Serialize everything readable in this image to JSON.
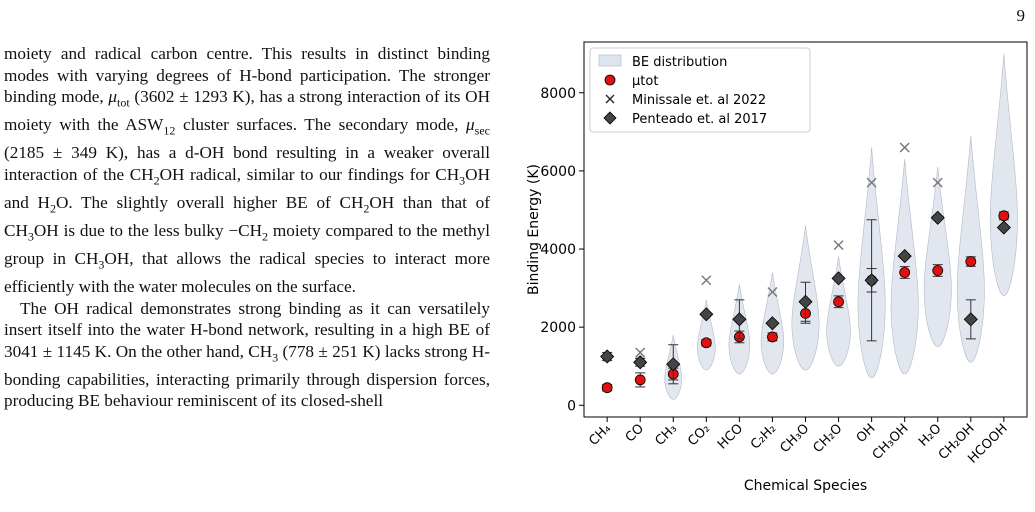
{
  "page": {
    "number": "9"
  },
  "body_text": {
    "paragraphs": [
      "moiety and radical carbon centre. This results in distinct binding modes with varying degrees of H-bond participation. The stronger binding mode, μtot (3602 ± 1293 K), has a strong interaction of its OH moiety with the ASW12 cluster surfaces. The secondary mode, μsec (2185 ± 349 K), has a d-OH bond resulting in a weaker overall interaction of the CH2OH radical, similar to our findings for CH3OH and H2O. The slightly overall higher BE of CH2OH than that of CH3OH is due to the less bulky −CH2 moiety compared to the methyl group in CH3OH, that allows the radical species to interact more efficiently with the water molecules on the surface.",
      "The OH radical demonstrates strong binding as it can versatilely insert itself into the water H-bond network, resulting in a high BE of 3041 ± 1145 K. On the other hand, CH3 (778 ± 251 K) lacks strong H-bonding capabilities, interacting primarily through dispersion forces, producing BE behaviour reminiscent of its closed-shell"
    ]
  },
  "chart_data": {
    "type": "scatter",
    "xlabel": "Chemical Species",
    "ylabel": "Binding Energy (K)",
    "ylim": [
      -300,
      9300
    ],
    "yticks": [
      0,
      2000,
      4000,
      6000,
      8000
    ],
    "categories": [
      "CH₄",
      "CO",
      "CH₃",
      "CO₂",
      "HCO",
      "C₂H₂",
      "CH₃O",
      "CH₂O",
      "OH",
      "CH₃OH",
      "H₂O",
      "CH₂OH",
      "HCOOH"
    ],
    "legend_position": "upper-left",
    "legend": [
      "BE distribution",
      "μtot",
      "Minissale  et. al 2022",
      "Penteado et. al 2017"
    ],
    "colors": {
      "violin_fill": "#dfe5ee",
      "violin_edge": "#aab3c2",
      "mu_tot": "#e01010",
      "penteado": "#444444",
      "minissale": "#777777",
      "error": "#333333"
    },
    "series": [
      {
        "name": "BE distribution",
        "kind": "violin",
        "ranges": [
          [
            1100,
            1350
          ],
          [
            1000,
            1400
          ],
          [
            150,
            1800
          ],
          [
            900,
            2700
          ],
          [
            800,
            3100
          ],
          [
            800,
            3400
          ],
          [
            900,
            4600
          ],
          [
            1000,
            3800
          ],
          [
            700,
            6600
          ],
          [
            800,
            6300
          ],
          [
            1500,
            6100
          ],
          [
            1100,
            6900
          ],
          [
            2800,
            9000
          ]
        ]
      },
      {
        "name": "μtot",
        "kind": "points_with_error",
        "values": [
          450,
          650,
          800,
          1600,
          1750,
          1750,
          2350,
          2650,
          3200,
          3400,
          3450,
          3680,
          4850
        ],
        "errors": [
          80,
          180,
          150,
          80,
          150,
          100,
          250,
          150,
          300,
          150,
          150,
          120,
          100
        ]
      },
      {
        "name": "Minissale  et. al 2022",
        "kind": "x_markers",
        "values": [
          1250,
          1350,
          null,
          3200,
          null,
          2900,
          null,
          4100,
          5700,
          6600,
          5700,
          null,
          null
        ]
      },
      {
        "name": "Penteado et. al 2017",
        "kind": "diamonds_with_error",
        "values": [
          1250,
          1100,
          1050,
          2330,
          2200,
          2100,
          2650,
          3250,
          3200,
          3820,
          4800,
          2200,
          4550
        ],
        "errors": [
          100,
          100,
          500,
          0,
          500,
          0,
          500,
          0,
          1550,
          0,
          0,
          500,
          0
        ]
      }
    ]
  }
}
